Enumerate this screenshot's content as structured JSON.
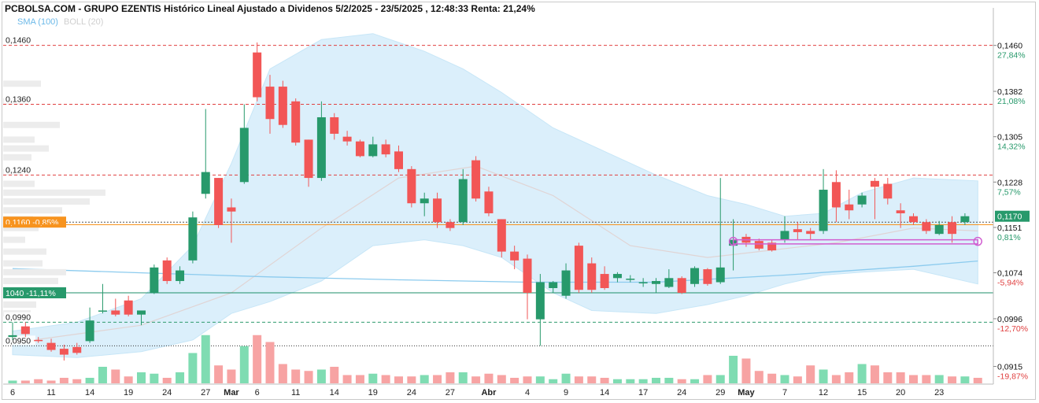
{
  "header": {
    "title": "PCBOLSA.COM - GRUPO EZENTIS Histórico Lineal Ajustado a Dividenos 5/2/2025 - 23/5/2025 , 12:48:33 Renta: 21,24%",
    "legend_sma": "SMA (100)",
    "legend_boll": "BOLL (20)"
  },
  "colors": {
    "up": "#27996b",
    "down": "#f25656",
    "volume_up": "#7fdcb2",
    "volume_down": "#f7a3a3",
    "bollinger_fill": "#dbeffb",
    "sma": "#8ccbee",
    "bollinger_mid": "#e0d4d4",
    "price_label": "#f7931e",
    "current_label": "#27996b",
    "support_label": "#27996b",
    "gap_marker": "#d15fd1"
  },
  "chart_data": {
    "type": "candlestick",
    "xlabels": [
      "6",
      "11",
      "14",
      "19",
      "24",
      "27",
      "Mar",
      "6",
      "11",
      "14",
      "19",
      "24",
      "27",
      "Abr",
      "4",
      "9",
      "14",
      "17",
      "24",
      "29",
      "May",
      "7",
      "12",
      "15",
      "20",
      "23"
    ],
    "y_right_ticks": [
      "0,1460",
      "0,1382",
      "0,1305",
      "0,1228",
      "0,1151",
      "0,1074",
      "0,0996",
      "0,0915"
    ],
    "percent_labels": [
      "27,84%",
      "21,08%",
      "14,32%",
      "7,57%",
      "0,81%",
      "-5,94%",
      "-12,70%",
      "-19,87%"
    ],
    "ylim": [
      0.0885,
      0.1505
    ],
    "levels": [
      {
        "value": 0.146,
        "label": "0,1460",
        "style": "resistance"
      },
      {
        "value": 0.136,
        "label": "0,1360",
        "style": "resistance"
      },
      {
        "value": 0.124,
        "label": "0,1240",
        "style": "resistance"
      },
      {
        "value": 0.116,
        "label": "0,1160 -0,85%",
        "style": "reference"
      },
      {
        "value": 0.104,
        "label": "1040 -11,11%",
        "style": "support"
      },
      {
        "value": 0.099,
        "label": "0,0990",
        "style": "dashed-green"
      },
      {
        "value": 0.095,
        "label": "0,0950",
        "style": "dotted"
      }
    ],
    "last_price": {
      "value": 0.117,
      "label": "0,1170"
    },
    "candles": [
      {
        "date": "6 Feb",
        "o": 0.0965,
        "h": 0.099,
        "l": 0.096,
        "c": 0.0968
      },
      {
        "date": "7 Feb",
        "o": 0.0983,
        "h": 0.099,
        "l": 0.0965,
        "c": 0.097
      },
      {
        "date": "10 Feb",
        "o": 0.096,
        "h": 0.0965,
        "l": 0.0955,
        "c": 0.0958
      },
      {
        "date": "11 Feb",
        "o": 0.0955,
        "h": 0.0962,
        "l": 0.094,
        "c": 0.0943
      },
      {
        "date": "12 Feb",
        "o": 0.0945,
        "h": 0.0952,
        "l": 0.0925,
        "c": 0.0935
      },
      {
        "date": "13 Feb",
        "o": 0.0948,
        "h": 0.0955,
        "l": 0.0935,
        "c": 0.0938
      },
      {
        "date": "14 Feb",
        "o": 0.0958,
        "h": 0.1015,
        "l": 0.0955,
        "c": 0.0993
      },
      {
        "date": "17 Feb",
        "o": 0.101,
        "h": 0.1055,
        "l": 0.1005,
        "c": 0.101
      },
      {
        "date": "18 Feb",
        "o": 0.101,
        "h": 0.103,
        "l": 0.1,
        "c": 0.1003
      },
      {
        "date": "19 Feb",
        "o": 0.1027,
        "h": 0.1035,
        "l": 0.1,
        "c": 0.1003
      },
      {
        "date": "20 Feb",
        "o": 0.1003,
        "h": 0.101,
        "l": 0.0985,
        "c": 0.101
      },
      {
        "date": "21 Feb",
        "o": 0.104,
        "h": 0.1088,
        "l": 0.1038,
        "c": 0.1083
      },
      {
        "date": "24 Feb",
        "o": 0.1095,
        "h": 0.11,
        "l": 0.1055,
        "c": 0.106
      },
      {
        "date": "25 Feb",
        "o": 0.106,
        "h": 0.1085,
        "l": 0.1055,
        "c": 0.1078
      },
      {
        "date": "26 Feb",
        "o": 0.1095,
        "h": 0.1178,
        "l": 0.109,
        "c": 0.1168
      },
      {
        "date": "27 Feb",
        "o": 0.1208,
        "h": 0.1352,
        "l": 0.12,
        "c": 0.1245
      },
      {
        "date": "28 Feb",
        "o": 0.1235,
        "h": 0.1235,
        "l": 0.115,
        "c": 0.1155
      },
      {
        "date": "3 Mar",
        "o": 0.1185,
        "h": 0.12,
        "l": 0.1125,
        "c": 0.1178
      },
      {
        "date": "4 Mar",
        "o": 0.1228,
        "h": 0.136,
        "l": 0.1225,
        "c": 0.132
      },
      {
        "date": "5 Mar",
        "o": 0.1448,
        "h": 0.1465,
        "l": 0.1365,
        "c": 0.1372
      },
      {
        "date": "6 Mar",
        "o": 0.139,
        "h": 0.141,
        "l": 0.131,
        "c": 0.1335
      },
      {
        "date": "7 Mar",
        "o": 0.139,
        "h": 0.14,
        "l": 0.132,
        "c": 0.1325
      },
      {
        "date": "10 Mar",
        "o": 0.1365,
        "h": 0.137,
        "l": 0.129,
        "c": 0.1295
      },
      {
        "date": "11 Mar",
        "o": 0.13,
        "h": 0.13,
        "l": 0.122,
        "c": 0.1235
      },
      {
        "date": "12 Mar",
        "o": 0.1235,
        "h": 0.1365,
        "l": 0.123,
        "c": 0.1338
      },
      {
        "date": "13 Mar",
        "o": 0.1338,
        "h": 0.1345,
        "l": 0.13,
        "c": 0.131
      },
      {
        "date": "14 Mar",
        "o": 0.1305,
        "h": 0.1315,
        "l": 0.129,
        "c": 0.1297
      },
      {
        "date": "17 Mar",
        "o": 0.1297,
        "h": 0.13,
        "l": 0.127,
        "c": 0.1272
      },
      {
        "date": "18 Mar",
        "o": 0.1272,
        "h": 0.1305,
        "l": 0.127,
        "c": 0.1292
      },
      {
        "date": "19 Mar",
        "o": 0.1292,
        "h": 0.13,
        "l": 0.127,
        "c": 0.1275
      },
      {
        "date": "20 Mar",
        "o": 0.128,
        "h": 0.129,
        "l": 0.1245,
        "c": 0.125
      },
      {
        "date": "21 Mar",
        "o": 0.125,
        "h": 0.1255,
        "l": 0.1185,
        "c": 0.1192
      },
      {
        "date": "24 Mar",
        "o": 0.1192,
        "h": 0.121,
        "l": 0.117,
        "c": 0.12
      },
      {
        "date": "25 Mar",
        "o": 0.12,
        "h": 0.121,
        "l": 0.115,
        "c": 0.116
      },
      {
        "date": "26 Mar",
        "o": 0.116,
        "h": 0.1165,
        "l": 0.1145,
        "c": 0.115
      },
      {
        "date": "27 Mar",
        "o": 0.116,
        "h": 0.125,
        "l": 0.1155,
        "c": 0.1233
      },
      {
        "date": "28 Mar",
        "o": 0.1265,
        "h": 0.1272,
        "l": 0.1195,
        "c": 0.12
      },
      {
        "date": "31 Mar",
        "o": 0.1212,
        "h": 0.122,
        "l": 0.117,
        "c": 0.1175
      },
      {
        "date": "1 Apr",
        "o": 0.1165,
        "h": 0.1165,
        "l": 0.11,
        "c": 0.111
      },
      {
        "date": "2 Apr",
        "o": 0.111,
        "h": 0.112,
        "l": 0.108,
        "c": 0.1095
      },
      {
        "date": "3 Apr",
        "o": 0.1098,
        "h": 0.1105,
        "l": 0.0995,
        "c": 0.104
      },
      {
        "date": "4 Apr",
        "o": 0.0995,
        "h": 0.1072,
        "l": 0.095,
        "c": 0.1058
      },
      {
        "date": "7 Apr",
        "o": 0.1048,
        "h": 0.106,
        "l": 0.104,
        "c": 0.1058
      },
      {
        "date": "8 Apr",
        "o": 0.1035,
        "h": 0.109,
        "l": 0.103,
        "c": 0.1078
      },
      {
        "date": "9 Apr",
        "o": 0.112,
        "h": 0.1125,
        "l": 0.104,
        "c": 0.1045
      },
      {
        "date": "10 Apr",
        "o": 0.109,
        "h": 0.11,
        "l": 0.104,
        "c": 0.1045
      },
      {
        "date": "11 Apr",
        "o": 0.1072,
        "h": 0.1085,
        "l": 0.1045,
        "c": 0.1048
      },
      {
        "date": "14 Apr",
        "o": 0.1065,
        "h": 0.1075,
        "l": 0.1058,
        "c": 0.1072
      },
      {
        "date": "15 Apr",
        "o": 0.1062,
        "h": 0.107,
        "l": 0.1058,
        "c": 0.1064
      },
      {
        "date": "16 Apr",
        "o": 0.1058,
        "h": 0.1065,
        "l": 0.105,
        "c": 0.1058
      },
      {
        "date": "17 Apr",
        "o": 0.1055,
        "h": 0.1065,
        "l": 0.104,
        "c": 0.106
      },
      {
        "date": "22 Apr",
        "o": 0.105,
        "h": 0.108,
        "l": 0.1048,
        "c": 0.1065
      },
      {
        "date": "23 Apr",
        "o": 0.1065,
        "h": 0.1068,
        "l": 0.1038,
        "c": 0.104
      },
      {
        "date": "24 Apr",
        "o": 0.1055,
        "h": 0.1085,
        "l": 0.105,
        "c": 0.1082
      },
      {
        "date": "25 Apr",
        "o": 0.108,
        "h": 0.1082,
        "l": 0.1052,
        "c": 0.1055
      },
      {
        "date": "28 Apr",
        "o": 0.1058,
        "h": 0.1235,
        "l": 0.1055,
        "c": 0.1083
      },
      {
        "date": "29 Apr",
        "o": 0.112,
        "h": 0.1165,
        "l": 0.1078,
        "c": 0.113
      },
      {
        "date": "30 Apr",
        "o": 0.1135,
        "h": 0.114,
        "l": 0.1118,
        "c": 0.1125
      },
      {
        "date": "2 May",
        "o": 0.1128,
        "h": 0.1132,
        "l": 0.1112,
        "c": 0.1115
      },
      {
        "date": "5 May",
        "o": 0.1125,
        "h": 0.113,
        "l": 0.111,
        "c": 0.1112
      },
      {
        "date": "6 May",
        "o": 0.113,
        "h": 0.117,
        "l": 0.1125,
        "c": 0.1145
      },
      {
        "date": "7 May",
        "o": 0.1148,
        "h": 0.116,
        "l": 0.113,
        "c": 0.1143
      },
      {
        "date": "8 May",
        "o": 0.1145,
        "h": 0.115,
        "l": 0.113,
        "c": 0.114
      },
      {
        "date": "9 May",
        "o": 0.1145,
        "h": 0.125,
        "l": 0.114,
        "c": 0.1215
      },
      {
        "date": "12 May",
        "o": 0.1228,
        "h": 0.1248,
        "l": 0.116,
        "c": 0.1185
      },
      {
        "date": "13 May",
        "o": 0.119,
        "h": 0.1215,
        "l": 0.1165,
        "c": 0.118
      },
      {
        "date": "14 May",
        "o": 0.119,
        "h": 0.121,
        "l": 0.1185,
        "c": 0.1205
      },
      {
        "date": "15 May",
        "o": 0.123,
        "h": 0.1235,
        "l": 0.1165,
        "c": 0.122
      },
      {
        "date": "16 May",
        "o": 0.1225,
        "h": 0.1235,
        "l": 0.119,
        "c": 0.12
      },
      {
        "date": "19 May",
        "o": 0.118,
        "h": 0.1192,
        "l": 0.115,
        "c": 0.1175
      },
      {
        "date": "20 May",
        "o": 0.117,
        "h": 0.1175,
        "l": 0.1155,
        "c": 0.116
      },
      {
        "date": "21 May",
        "o": 0.116,
        "h": 0.1165,
        "l": 0.114,
        "c": 0.1145
      },
      {
        "date": "22 May",
        "o": 0.114,
        "h": 0.1162,
        "l": 0.1138,
        "c": 0.1155
      },
      {
        "date": "23 May",
        "o": 0.116,
        "h": 0.117,
        "l": 0.1125,
        "c": 0.114
      },
      {
        "date": "23 May (last)",
        "o": 0.116,
        "h": 0.1175,
        "l": 0.1155,
        "c": 0.117
      }
    ],
    "volume": [
      2,
      2,
      3,
      2,
      4,
      3,
      4,
      12,
      10,
      5,
      8,
      7,
      4,
      8,
      22,
      35,
      13,
      10,
      27,
      35,
      30,
      14,
      10,
      9,
      10,
      12,
      6,
      6,
      7,
      6,
      5,
      5,
      6,
      6,
      8,
      8,
      5,
      7,
      6,
      4,
      5,
      5,
      3,
      7,
      5,
      5,
      4,
      3,
      3,
      3,
      4,
      4,
      3,
      3,
      6,
      6,
      20,
      18,
      9,
      7,
      6,
      5,
      13,
      10,
      6,
      8,
      14,
      13,
      8,
      8,
      6,
      6,
      6,
      5,
      5,
      4
    ],
    "volume_max": 40,
    "sma100": [
      [
        0,
        0.1081
      ],
      [
        10,
        0.1074
      ],
      [
        20,
        0.1067
      ],
      [
        30,
        0.1062
      ],
      [
        40,
        0.1058
      ],
      [
        50,
        0.1058
      ],
      [
        60,
        0.107
      ],
      [
        70,
        0.1085
      ],
      [
        75,
        0.1094
      ]
    ],
    "bollinger_upper": [
      [
        0,
        0.0975
      ],
      [
        5,
        0.099
      ],
      [
        10,
        0.103
      ],
      [
        14,
        0.112
      ],
      [
        17,
        0.126
      ],
      [
        20,
        0.142
      ],
      [
        24,
        0.147
      ],
      [
        28,
        0.148
      ],
      [
        32,
        0.145
      ],
      [
        35,
        0.142
      ],
      [
        38,
        0.138
      ],
      [
        42,
        0.132
      ],
      [
        46,
        0.128
      ],
      [
        50,
        0.124
      ],
      [
        54,
        0.1205
      ],
      [
        57,
        0.119
      ],
      [
        60,
        0.117
      ],
      [
        63,
        0.1175
      ],
      [
        66,
        0.121
      ],
      [
        70,
        0.1235
      ],
      [
        75,
        0.123
      ]
    ],
    "bollinger_lower": [
      [
        0,
        0.0935
      ],
      [
        5,
        0.093
      ],
      [
        10,
        0.094
      ],
      [
        14,
        0.096
      ],
      [
        17,
        0.1005
      ],
      [
        20,
        0.1025
      ],
      [
        24,
        0.106
      ],
      [
        28,
        0.112
      ],
      [
        32,
        0.113
      ],
      [
        35,
        0.112
      ],
      [
        38,
        0.11
      ],
      [
        42,
        0.104
      ],
      [
        45,
        0.101
      ],
      [
        50,
        0.1005
      ],
      [
        54,
        0.102
      ],
      [
        57,
        0.1035
      ],
      [
        60,
        0.1055
      ],
      [
        63,
        0.107
      ],
      [
        66,
        0.1075
      ],
      [
        70,
        0.108
      ],
      [
        75,
        0.1055
      ]
    ],
    "bollinger_mid": [
      [
        0,
        0.0955
      ],
      [
        10,
        0.0985
      ],
      [
        17,
        0.104
      ],
      [
        24,
        0.115
      ],
      [
        30,
        0.1235
      ],
      [
        36,
        0.1255
      ],
      [
        42,
        0.1205
      ],
      [
        48,
        0.112
      ],
      [
        54,
        0.11
      ],
      [
        58,
        0.111
      ],
      [
        64,
        0.1125
      ],
      [
        70,
        0.115
      ],
      [
        75,
        0.1145
      ]
    ],
    "gap_zone": {
      "from_index": 56,
      "to_index": 75,
      "top": 0.113,
      "bottom": 0.1123
    }
  }
}
